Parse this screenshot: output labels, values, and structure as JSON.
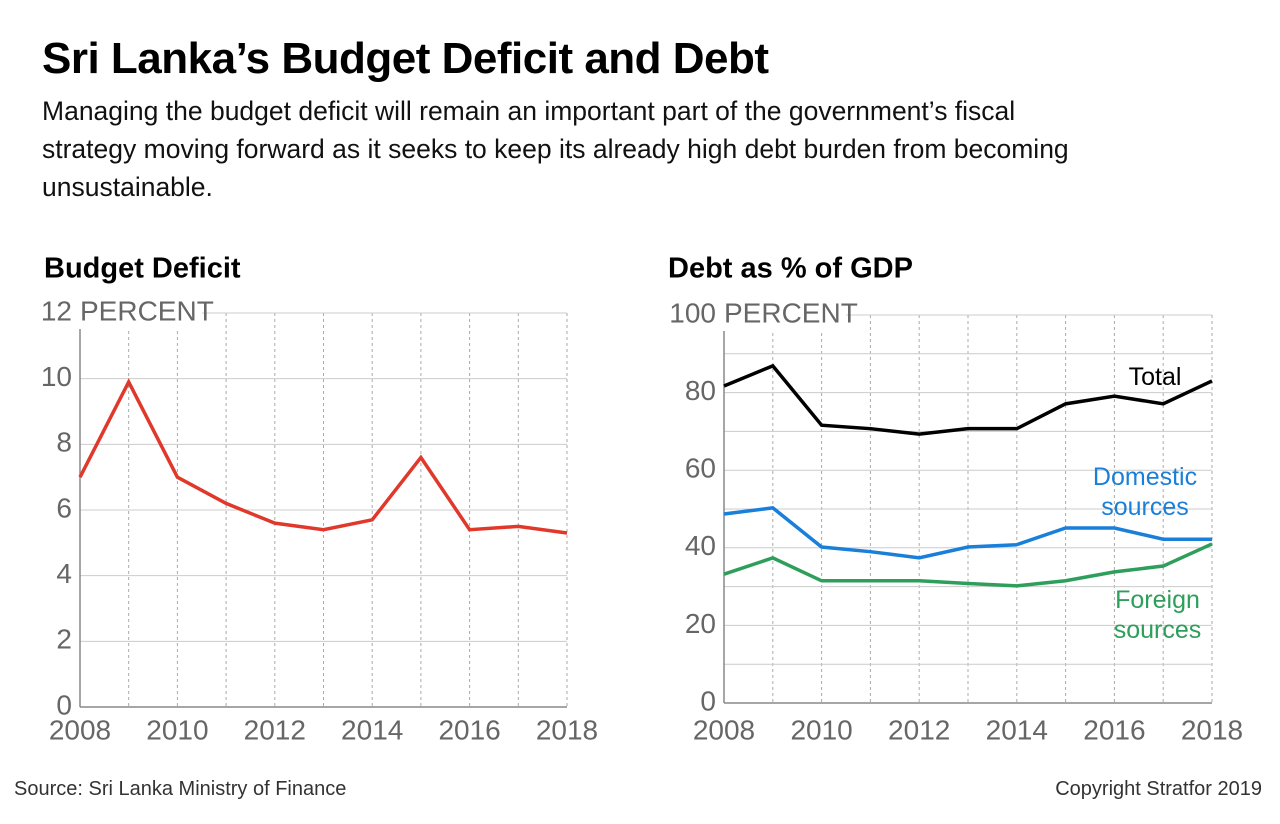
{
  "header": {
    "title": "Sri Lanka’s Budget Deficit and Debt",
    "subtitle": "Managing the budget deficit will remain an important part of the government’s fiscal strategy moving forward as it seeks to keep its already high debt burden from becoming unsustainable."
  },
  "chart_data": [
    {
      "type": "line",
      "title": "Budget Deficit",
      "y_label": "PERCENT",
      "x": [
        2008,
        2009,
        2010,
        2011,
        2012,
        2013,
        2014,
        2015,
        2016,
        2017,
        2018
      ],
      "values": [
        7.0,
        9.9,
        7.0,
        6.2,
        5.6,
        5.4,
        5.7,
        7.6,
        5.4,
        5.5,
        5.3
      ],
      "color": "#e0392b",
      "xlim": [
        2008,
        2018
      ],
      "xticks": [
        2008,
        2010,
        2012,
        2014,
        2016,
        2018
      ],
      "ylim": [
        0,
        12
      ],
      "yticks": [
        0,
        2,
        4,
        6,
        8,
        10,
        12
      ],
      "grid": true
    },
    {
      "type": "line",
      "title": "Debt as % of GDP",
      "y_label": "PERCENT",
      "x": [
        2008,
        2009,
        2010,
        2011,
        2012,
        2013,
        2014,
        2015,
        2016,
        2017,
        2018
      ],
      "series": [
        {
          "name": "Total",
          "color": "#000000",
          "values": [
            81.7,
            86.9,
            71.6,
            70.7,
            69.3,
            70.7,
            70.7,
            77.1,
            79.1,
            77.1,
            83.0
          ]
        },
        {
          "name": "Domestic sources",
          "color": "#1a7fd9",
          "values": [
            48.7,
            50.3,
            40.2,
            39.0,
            37.4,
            40.2,
            40.8,
            45.1,
            45.1,
            42.2,
            42.2
          ]
        },
        {
          "name": "Foreign sources",
          "color": "#2e9e5b",
          "values": [
            33.2,
            37.4,
            31.5,
            31.5,
            31.5,
            30.8,
            30.2,
            31.5,
            33.8,
            35.3,
            41.0
          ]
        }
      ],
      "xlim": [
        2008,
        2018
      ],
      "xticks": [
        2008,
        2010,
        2012,
        2014,
        2016,
        2018
      ],
      "ylim": [
        0,
        100
      ],
      "yticks": [
        0,
        20,
        40,
        60,
        80,
        100
      ],
      "minor_yticks": [
        10,
        30,
        50,
        70,
        90
      ],
      "grid": true
    }
  ],
  "footer": {
    "source": "Source: Sri Lanka Ministry of Finance",
    "copyright": "Copyright Stratfor 2019"
  }
}
